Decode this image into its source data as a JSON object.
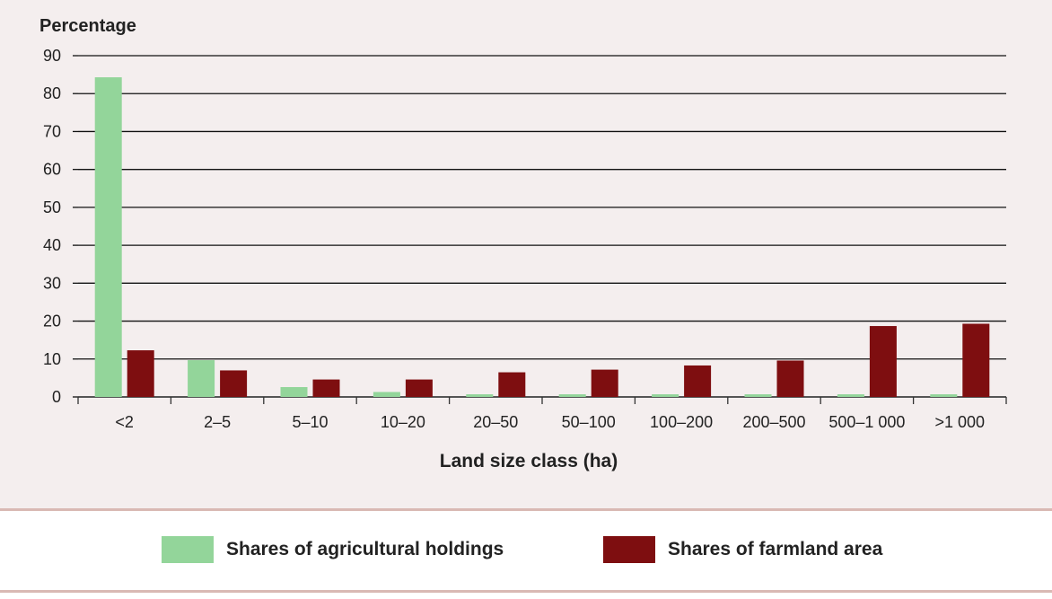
{
  "chart_data": {
    "type": "bar",
    "ylabel": "Percentage",
    "xlabel": "Land size class (ha)",
    "ylim": [
      0,
      90
    ],
    "yticks": [
      0,
      10,
      20,
      30,
      40,
      50,
      60,
      70,
      80,
      90
    ],
    "grid": true,
    "legend_placement": "bottom",
    "categories": [
      "<2",
      "2–5",
      "5–10",
      "10–20",
      "20–50",
      "50–100",
      "100–200",
      "200–500",
      "500–1 000",
      ">1 000"
    ],
    "series": [
      {
        "name": "Shares of agricultural holdings",
        "color": "#93d59a",
        "values": [
          84.3,
          9.7,
          2.6,
          1.3,
          0.7,
          0.7,
          0.7,
          0.7,
          0.7,
          0.7
        ]
      },
      {
        "name": "Shares of farmland area",
        "color": "#7e0e10",
        "values": [
          12.3,
          7.0,
          4.6,
          4.6,
          6.5,
          7.2,
          8.3,
          9.6,
          18.7,
          19.3
        ]
      }
    ]
  }
}
